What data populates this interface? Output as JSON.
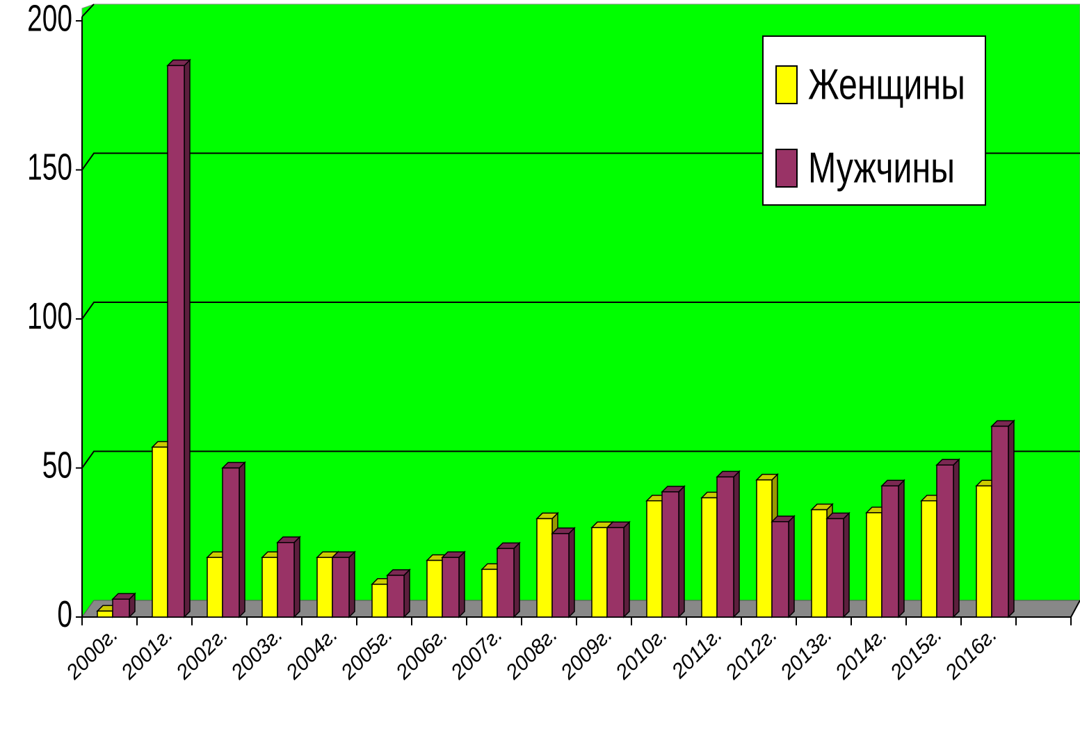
{
  "chart_data": {
    "type": "bar3d",
    "categories": [
      "2000г.",
      "2001г.",
      "2002г.",
      "2003г.",
      "2004г.",
      "2005г.",
      "2006г.",
      "2007г.",
      "2008г.",
      "2009г.",
      "2010г.",
      "2011г.",
      "2012г.",
      "2013г.",
      "2014г.",
      "2015г.",
      "2016г."
    ],
    "series": [
      {
        "name": "Женщины",
        "color": "#ffff00",
        "values": [
          2,
          57,
          20,
          20,
          20,
          11,
          19,
          16,
          33,
          30,
          39,
          40,
          46,
          36,
          35,
          39,
          44
        ]
      },
      {
        "name": "Мужчины",
        "color": "#993366",
        "values": [
          6,
          185,
          50,
          25,
          20,
          14,
          20,
          23,
          28,
          30,
          42,
          47,
          32,
          33,
          44,
          51,
          64
        ]
      }
    ],
    "ylim": [
      0,
      200
    ],
    "yticks": [
      0,
      50,
      100,
      150,
      200
    ],
    "grid": true,
    "background": "#00ff00",
    "legend": "top-right"
  }
}
